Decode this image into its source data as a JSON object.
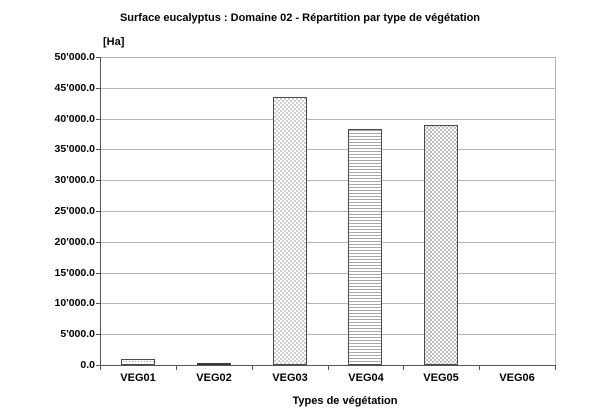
{
  "chart_data": {
    "type": "bar",
    "title": "Surface eucalyptus : Domaine 02 - Répartition par type de végétation",
    "unit_label": "[Ha]",
    "xlabel": "Types de végétation",
    "ylabel": "",
    "categories": [
      "VEG01",
      "VEG02",
      "VEG03",
      "VEG04",
      "VEG05",
      "VEG06"
    ],
    "values": [
      900,
      200,
      43500,
      38300,
      39000,
      0
    ],
    "ylim": [
      0,
      50000
    ],
    "ytick_step": 5000,
    "ytick_labels": [
      "0.0",
      "5'000.0",
      "10'000.0",
      "15'000.0",
      "20'000.0",
      "25'000.0",
      "30'000.0",
      "35'000.0",
      "40'000.0",
      "45'000.0",
      "50'000.0"
    ],
    "grid": true,
    "legend": false,
    "bar_patterns": [
      "dots",
      "solid-dark",
      "checker",
      "hlines",
      "dot-rows",
      "none"
    ],
    "colors": {
      "background": "#ffffff",
      "text": "#000000",
      "axis": "#555555",
      "gridline": "#b4b4b4",
      "bar_border": "#4a4a4a",
      "pattern_ink": "#b0b0b0"
    }
  }
}
